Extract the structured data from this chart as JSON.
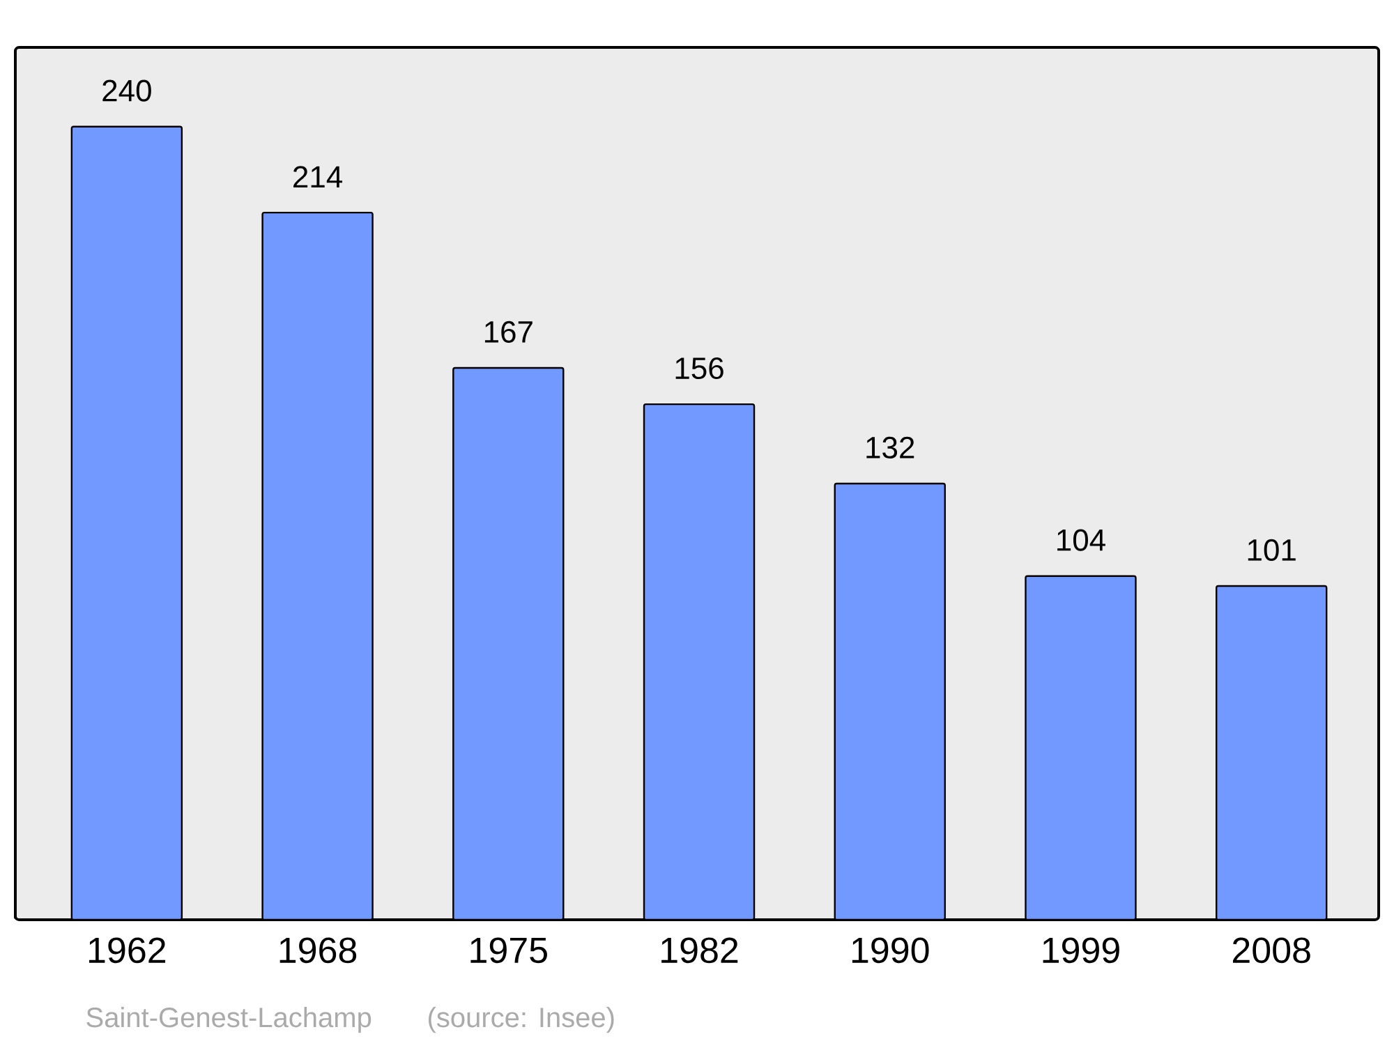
{
  "chart_data": {
    "type": "bar",
    "categories": [
      "1962",
      "1968",
      "1975",
      "1982",
      "1990",
      "1999",
      "2008"
    ],
    "values": [
      240,
      214,
      167,
      156,
      132,
      104,
      101
    ],
    "color": "#7299ff",
    "ylim": [
      0,
      264
    ],
    "data_labels": true,
    "annotations": [
      "Saint-Genest-Lachamp",
      "(source: Insee)"
    ]
  }
}
